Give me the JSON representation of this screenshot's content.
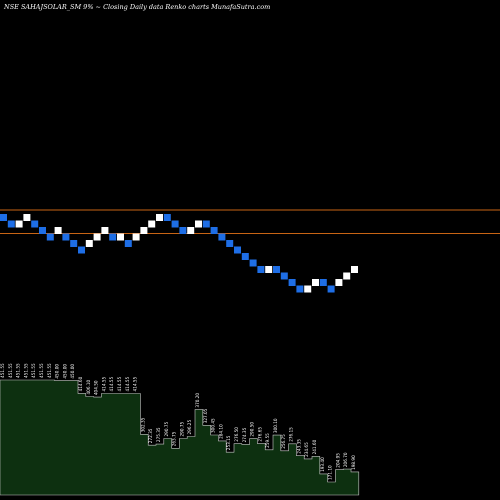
{
  "header": {
    "title": "NSE SAHAJSOLAR_SM 9% ~ Closing Daily data Renko charts MunafaSutra.com"
  },
  "colors": {
    "background": "#000000",
    "up_brick": "#ffffff",
    "down_brick": "#1e6ee6",
    "level_line": "#c86414",
    "volume_fill": "#0d3010",
    "volume_stroke": "#c8c8c8",
    "price_label": "#ffffff"
  },
  "chart_data": {
    "type": "renko",
    "title": "NSE SAHAJSOLAR_SM 9% ~ Closing Daily data Renko charts MunafaSutra.com",
    "xlabel": "",
    "ylabel": "",
    "grid": false,
    "bricks": [
      {
        "dir": "down",
        "level": 30
      },
      {
        "dir": "down",
        "level": 29
      },
      {
        "dir": "up",
        "level": 29
      },
      {
        "dir": "up",
        "level": 30
      },
      {
        "dir": "down",
        "level": 29
      },
      {
        "dir": "down",
        "level": 28
      },
      {
        "dir": "down",
        "level": 27
      },
      {
        "dir": "up",
        "level": 28
      },
      {
        "dir": "down",
        "level": 27
      },
      {
        "dir": "down",
        "level": 26
      },
      {
        "dir": "down",
        "level": 25
      },
      {
        "dir": "up",
        "level": 26
      },
      {
        "dir": "up",
        "level": 27
      },
      {
        "dir": "up",
        "level": 28
      },
      {
        "dir": "down",
        "level": 27
      },
      {
        "dir": "up",
        "level": 27
      },
      {
        "dir": "down",
        "level": 26
      },
      {
        "dir": "up",
        "level": 27
      },
      {
        "dir": "up",
        "level": 28
      },
      {
        "dir": "up",
        "level": 29
      },
      {
        "dir": "up",
        "level": 30
      },
      {
        "dir": "down",
        "level": 30
      },
      {
        "dir": "down",
        "level": 29
      },
      {
        "dir": "down",
        "level": 28
      },
      {
        "dir": "up",
        "level": 28
      },
      {
        "dir": "up",
        "level": 29
      },
      {
        "dir": "down",
        "level": 29
      },
      {
        "dir": "down",
        "level": 28
      },
      {
        "dir": "down",
        "level": 27
      },
      {
        "dir": "down",
        "level": 26
      },
      {
        "dir": "down",
        "level": 25
      },
      {
        "dir": "down",
        "level": 24
      },
      {
        "dir": "down",
        "level": 23
      },
      {
        "dir": "down",
        "level": 22
      },
      {
        "dir": "up",
        "level": 22
      },
      {
        "dir": "down",
        "level": 22
      },
      {
        "dir": "down",
        "level": 21
      },
      {
        "dir": "down",
        "level": 20
      },
      {
        "dir": "down",
        "level": 19
      },
      {
        "dir": "up",
        "level": 19
      },
      {
        "dir": "up",
        "level": 20
      },
      {
        "dir": "down",
        "level": 20
      },
      {
        "dir": "down",
        "level": 19
      },
      {
        "dir": "up",
        "level": 20
      },
      {
        "dir": "up",
        "level": 21
      },
      {
        "dir": "up",
        "level": 22
      }
    ],
    "level_lines": [
      210,
      233.5
    ],
    "volume_labels": [
      "451.55",
      "451.55",
      "451.55",
      "451.55",
      "451.55",
      "451.55",
      "451.55",
      "450.00",
      "450.00",
      "450.00",
      "414.60",
      "406.10",
      "404.50",
      "414.55",
      "414.55",
      "414.55",
      "414.55",
      "414.55",
      "302.35",
      "272.35",
      "275.35",
      "290.75",
      "263.75",
      "290.75",
      "296.25",
      "370.20",
      "327.05",
      "300.45",
      "284.10",
      "253.15",
      "276.50",
      "274.35",
      "290.50",
      "276.65",
      "259.55",
      "300.10",
      "256.75",
      "276.15",
      "243.35",
      "234.65",
      "241.60",
      "193.40",
      "171.10",
      "204.95",
      "206.70",
      "198.90"
    ]
  }
}
